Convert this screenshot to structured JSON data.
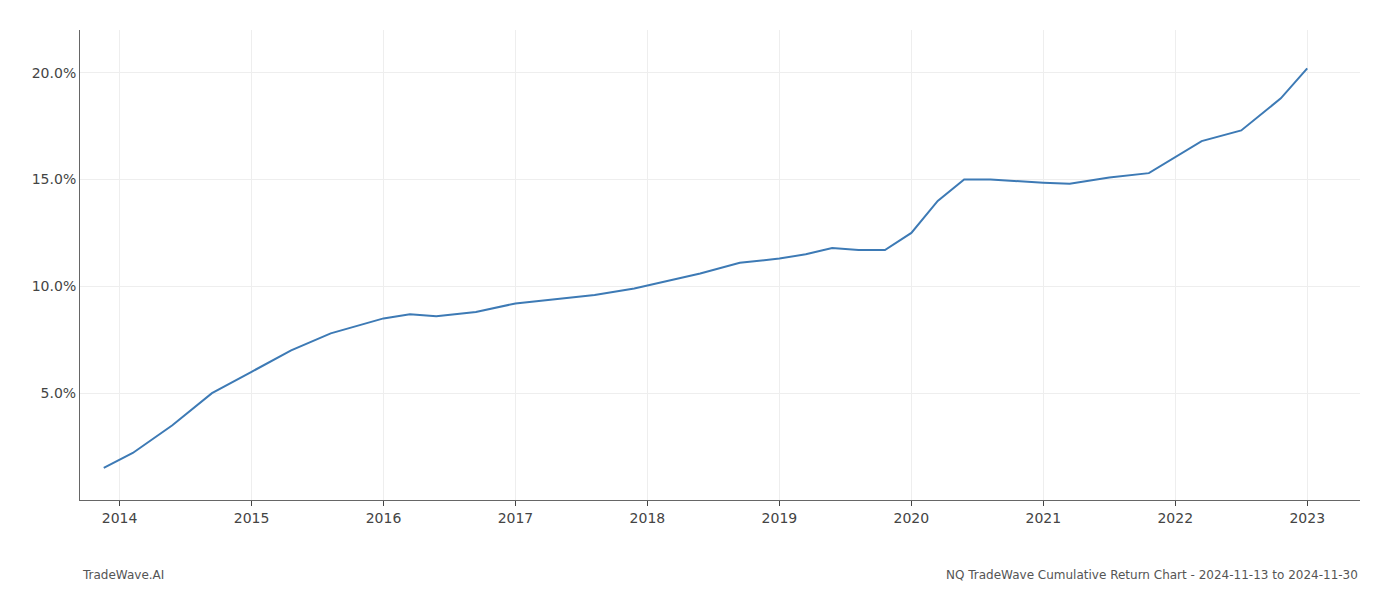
{
  "chart_data": {
    "type": "line",
    "x": [
      2013.88,
      2014.1,
      2014.4,
      2014.7,
      2015.0,
      2015.3,
      2015.6,
      2016.0,
      2016.2,
      2016.4,
      2016.7,
      2017.0,
      2017.3,
      2017.6,
      2017.9,
      2018.2,
      2018.4,
      2018.7,
      2019.0,
      2019.2,
      2019.4,
      2019.6,
      2019.8,
      2020.0,
      2020.2,
      2020.4,
      2020.6,
      2021.0,
      2021.2,
      2021.5,
      2021.8,
      2022.2,
      2022.5,
      2022.8,
      2023.0
    ],
    "values": [
      1.5,
      2.2,
      3.5,
      5.0,
      6.0,
      7.0,
      7.8,
      8.5,
      8.7,
      8.6,
      8.8,
      9.2,
      9.4,
      9.6,
      9.9,
      10.3,
      10.6,
      11.1,
      11.3,
      11.5,
      11.8,
      11.7,
      11.7,
      12.5,
      14.0,
      15.0,
      15.0,
      14.85,
      14.8,
      15.1,
      15.3,
      16.8,
      17.3,
      18.8,
      20.2
    ],
    "color": "#3d7ab5",
    "xlim": [
      2013.7,
      2023.4
    ],
    "xticks": [
      2014,
      2015,
      2016,
      2017,
      2018,
      2019,
      2020,
      2021,
      2022,
      2023
    ],
    "ylim": [
      0,
      22
    ],
    "yticks": [
      {
        "value": 5.0,
        "label": "5.0%"
      },
      {
        "value": 10.0,
        "label": "10.0%"
      },
      {
        "value": 15.0,
        "label": "15.0%"
      },
      {
        "value": 20.0,
        "label": "20.0%"
      }
    ],
    "grid": true,
    "annotations": [
      "TradeWave.AI",
      "NQ TradeWave Cumulative Return Chart - 2024-11-13 to 2024-11-30"
    ]
  }
}
